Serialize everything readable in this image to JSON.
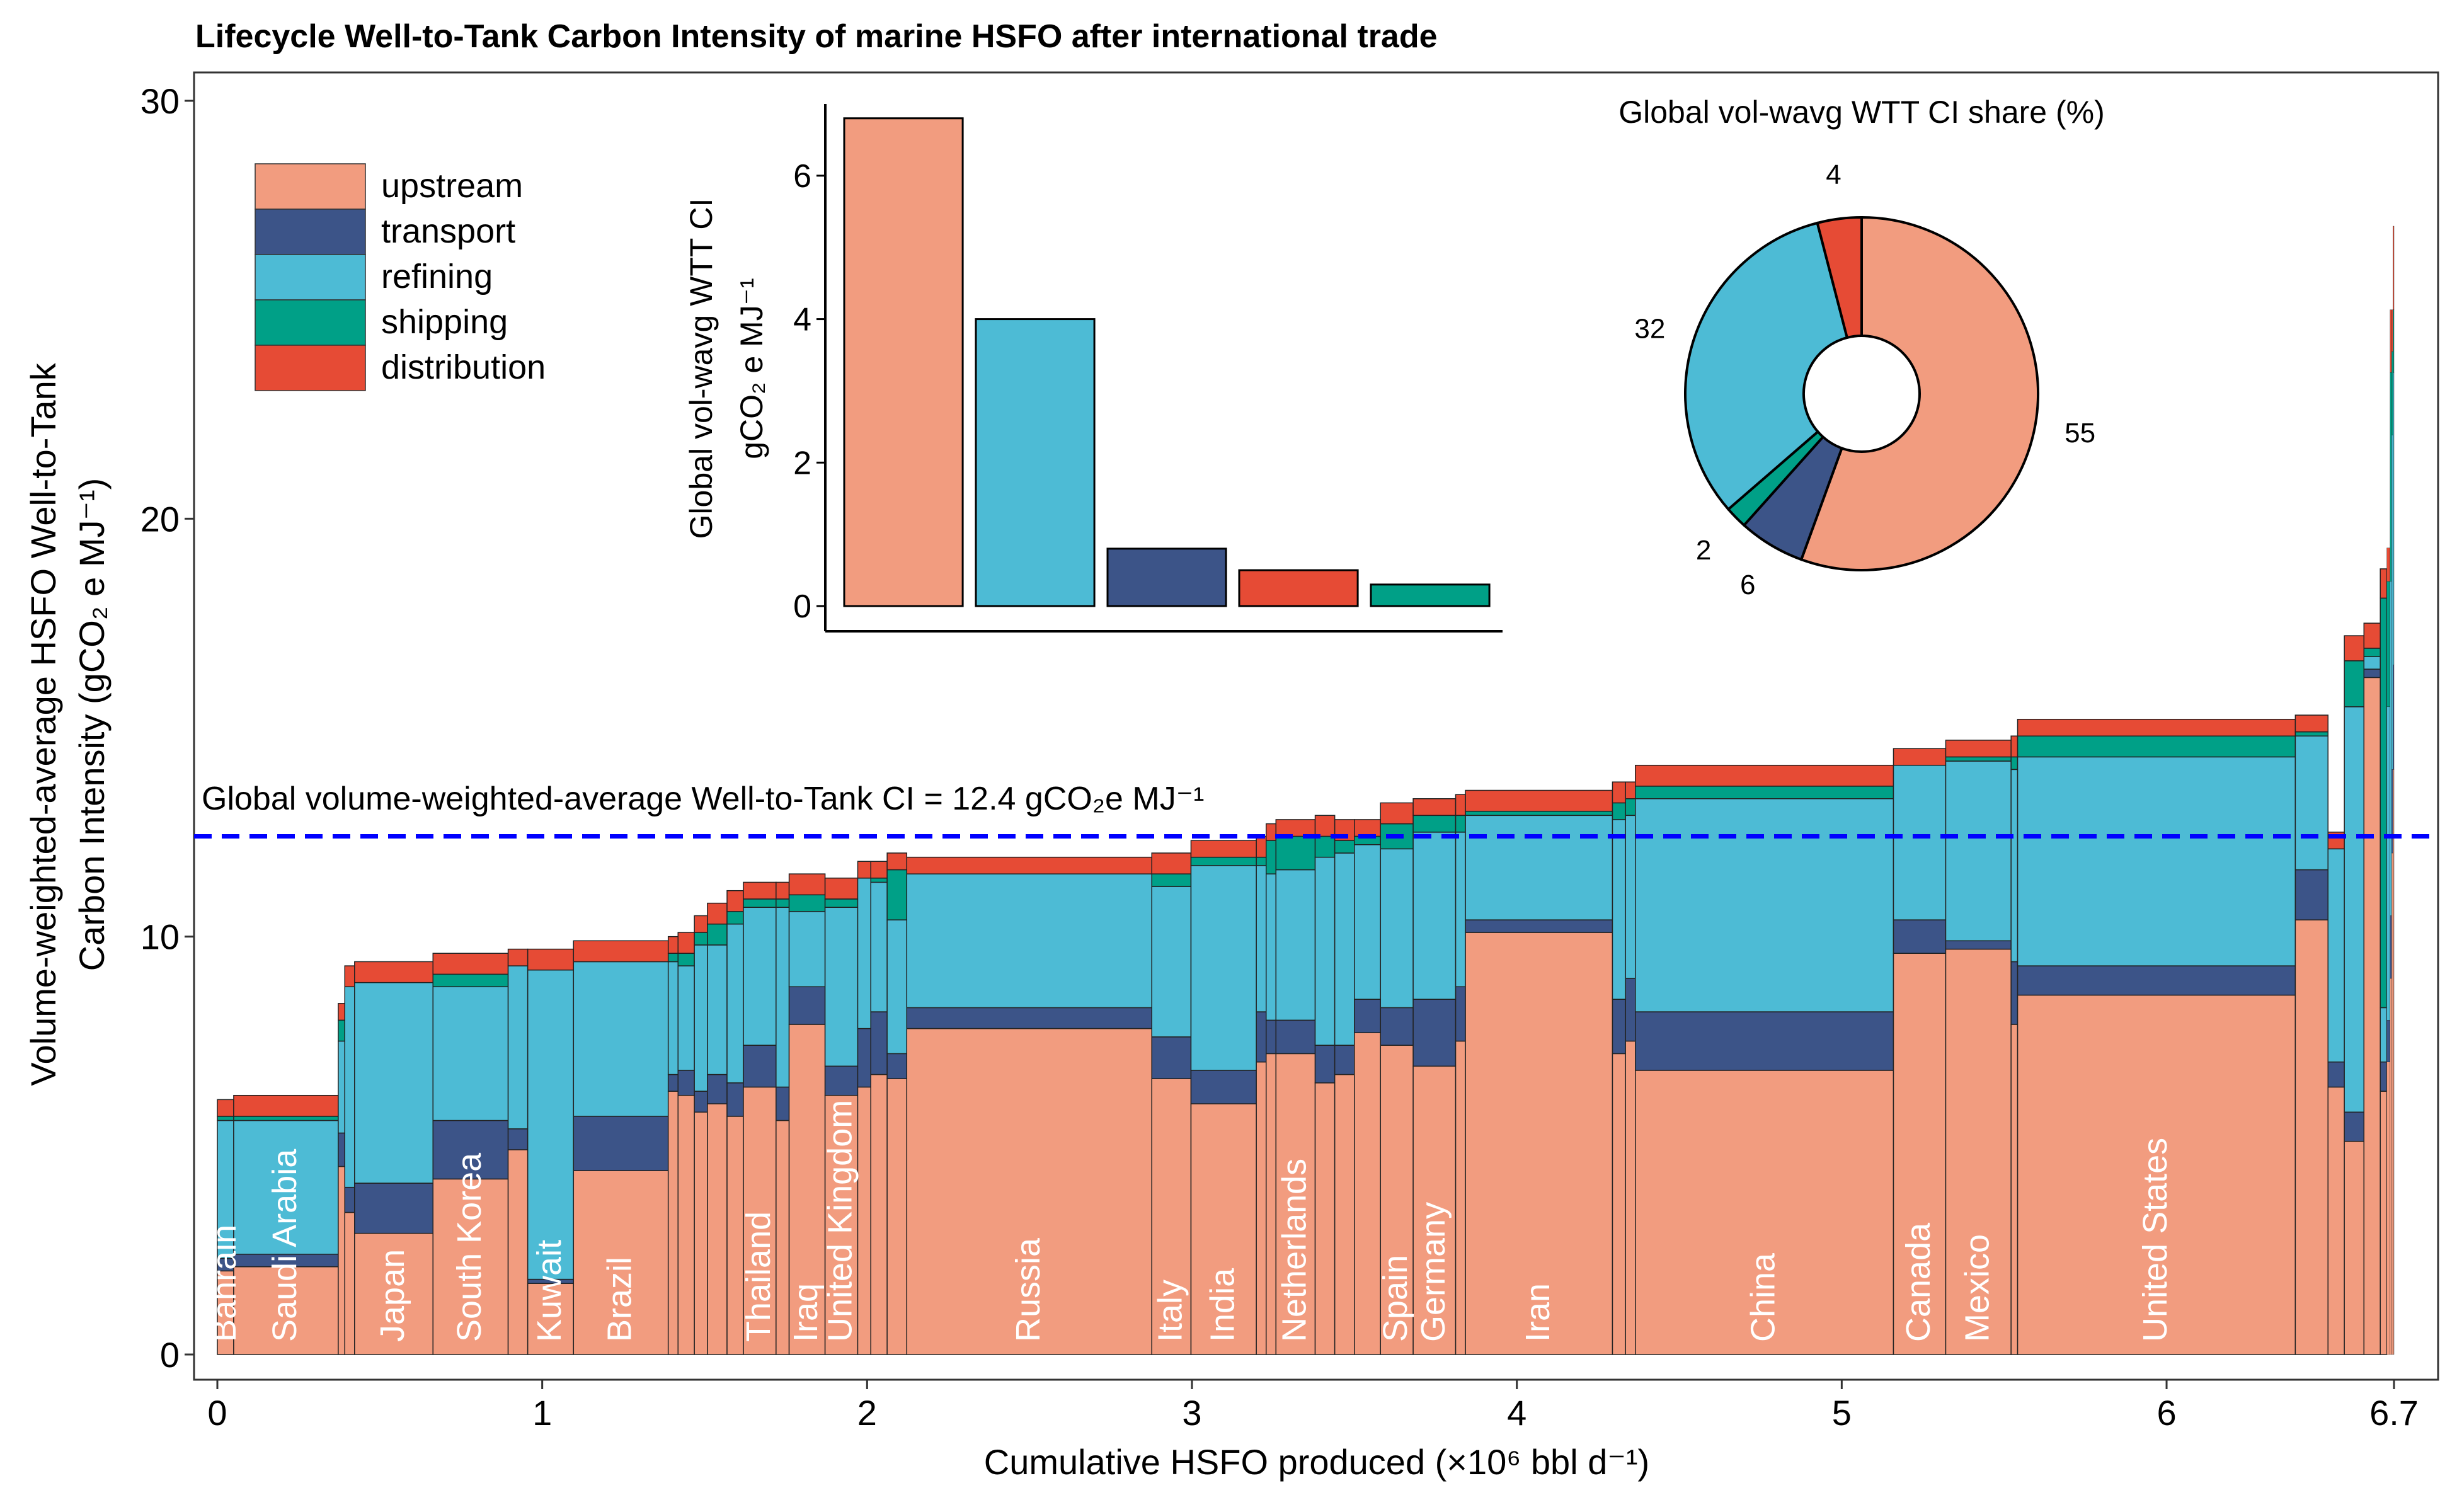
{
  "title": "Lifecycle Well-to-Tank Carbon Intensity of marine HSFO after international trade",
  "colors": {
    "upstream": "#f29c7f",
    "transport": "#3c5488",
    "refining": "#4dbbd5",
    "shipping": "#00a087",
    "distribution": "#e64b35",
    "avg_line": "#0000ff"
  },
  "chart_data": [
    {
      "type": "bar",
      "subtype": "variable-width stacked bar (marimekko)",
      "xlabel": "Cumulative HSFO produced (×10⁶ bbl d⁻¹)",
      "ylabel_line1": "Volume-weighted-average HSFO Well-to-Tank",
      "ylabel_line2": "Carbon Intensity (gCO₂ e MJ⁻¹)",
      "xlim": [
        0,
        6.7
      ],
      "ylim": [
        0,
        30
      ],
      "x_ticks": [
        0,
        1,
        2,
        3,
        4,
        5,
        6,
        6.7
      ],
      "x_tick_labels": [
        "0",
        "1",
        "2",
        "3",
        "4",
        "5",
        "6",
        "6.7"
      ],
      "y_ticks": [
        0,
        10,
        20,
        30
      ],
      "y_tick_labels": [
        "0",
        "10",
        "20",
        "30"
      ],
      "legend": [
        "upstream",
        "transport",
        "refining",
        "shipping",
        "distribution"
      ],
      "reference_line": {
        "value": 12.4,
        "label": "Global volume-weighted-average Well-to-Tank CI = 12.4  gCO₂e MJ⁻¹"
      },
      "series_order": [
        "upstream",
        "transport",
        "refining",
        "shipping",
        "distribution"
      ],
      "bars": [
        {
          "name": "Bahrain",
          "width": 0.05,
          "upstream": 2.0,
          "transport": 0.3,
          "refining": 3.3,
          "shipping": 0.1,
          "distribution": 0.4
        },
        {
          "name": "Saudi Arabia",
          "width": 0.32,
          "upstream": 2.1,
          "transport": 0.3,
          "refining": 3.2,
          "shipping": 0.1,
          "distribution": 0.5
        },
        {
          "name": "",
          "width": 0.02,
          "upstream": 4.5,
          "transport": 0.8,
          "refining": 2.2,
          "shipping": 0.5,
          "distribution": 0.4
        },
        {
          "name": "",
          "width": 0.03,
          "upstream": 3.4,
          "transport": 0.6,
          "refining": 4.8,
          "shipping": 0.0,
          "distribution": 0.5
        },
        {
          "name": "Japan",
          "width": 0.24,
          "upstream": 2.9,
          "transport": 1.2,
          "refining": 4.8,
          "shipping": 0.0,
          "distribution": 0.5
        },
        {
          "name": "South Korea",
          "width": 0.23,
          "upstream": 4.2,
          "transport": 1.4,
          "refining": 3.2,
          "shipping": 0.3,
          "distribution": 0.5
        },
        {
          "name": "",
          "width": 0.06,
          "upstream": 4.9,
          "transport": 0.5,
          "refining": 3.9,
          "shipping": 0.0,
          "distribution": 0.4
        },
        {
          "name": "Kuwait",
          "width": 0.14,
          "upstream": 1.7,
          "transport": 0.1,
          "refining": 7.4,
          "shipping": 0.0,
          "distribution": 0.5
        },
        {
          "name": "Brazil",
          "width": 0.29,
          "upstream": 4.4,
          "transport": 1.3,
          "refining": 3.7,
          "shipping": 0.0,
          "distribution": 0.5
        },
        {
          "name": "",
          "width": 0.03,
          "upstream": 6.3,
          "transport": 0.4,
          "refining": 2.7,
          "shipping": 0.2,
          "distribution": 0.4
        },
        {
          "name": "",
          "width": 0.05,
          "upstream": 6.2,
          "transport": 0.6,
          "refining": 2.5,
          "shipping": 0.3,
          "distribution": 0.5
        },
        {
          "name": "",
          "width": 0.04,
          "upstream": 5.8,
          "transport": 0.5,
          "refining": 3.5,
          "shipping": 0.3,
          "distribution": 0.4
        },
        {
          "name": "",
          "width": 0.06,
          "upstream": 6.0,
          "transport": 0.7,
          "refining": 3.1,
          "shipping": 0.5,
          "distribution": 0.5
        },
        {
          "name": "",
          "width": 0.05,
          "upstream": 5.7,
          "transport": 0.8,
          "refining": 3.8,
          "shipping": 0.3,
          "distribution": 0.5
        },
        {
          "name": "Thailand",
          "width": 0.1,
          "upstream": 6.4,
          "transport": 1.0,
          "refining": 3.3,
          "shipping": 0.2,
          "distribution": 0.4
        },
        {
          "name": "",
          "width": 0.04,
          "upstream": 5.6,
          "transport": 0.8,
          "refining": 4.3,
          "shipping": 0.2,
          "distribution": 0.4
        },
        {
          "name": "Iraq",
          "width": 0.11,
          "upstream": 7.9,
          "transport": 0.9,
          "refining": 1.8,
          "shipping": 0.4,
          "distribution": 0.5
        },
        {
          "name": "United Kingdom",
          "width": 0.1,
          "upstream": 6.2,
          "transport": 0.7,
          "refining": 3.8,
          "shipping": 0.2,
          "distribution": 0.5
        },
        {
          "name": "",
          "width": 0.04,
          "upstream": 6.4,
          "transport": 1.4,
          "refining": 3.6,
          "shipping": 0.0,
          "distribution": 0.4
        },
        {
          "name": "",
          "width": 0.05,
          "upstream": 6.7,
          "transport": 1.5,
          "refining": 3.1,
          "shipping": 0.1,
          "distribution": 0.4
        },
        {
          "name": "",
          "width": 0.06,
          "upstream": 6.6,
          "transport": 0.6,
          "refining": 3.2,
          "shipping": 1.2,
          "distribution": 0.4
        },
        {
          "name": "Russia",
          "width": 0.75,
          "upstream": 7.8,
          "transport": 0.5,
          "refining": 3.2,
          "shipping": 0.0,
          "distribution": 0.4
        },
        {
          "name": "Italy",
          "width": 0.12,
          "upstream": 6.6,
          "transport": 1.0,
          "refining": 3.6,
          "shipping": 0.3,
          "distribution": 0.5
        },
        {
          "name": "India",
          "width": 0.2,
          "upstream": 6.0,
          "transport": 0.8,
          "refining": 4.9,
          "shipping": 0.2,
          "distribution": 0.4
        },
        {
          "name": "",
          "width": 0.03,
          "upstream": 7.0,
          "transport": 1.2,
          "refining": 3.5,
          "shipping": 0.2,
          "distribution": 0.5
        },
        {
          "name": "",
          "width": 0.03,
          "upstream": 7.2,
          "transport": 0.8,
          "refining": 3.5,
          "shipping": 0.8,
          "distribution": 0.4
        },
        {
          "name": "Netherlands",
          "width": 0.12,
          "upstream": 7.2,
          "transport": 0.8,
          "refining": 3.6,
          "shipping": 0.8,
          "distribution": 0.4
        },
        {
          "name": "",
          "width": 0.06,
          "upstream": 6.5,
          "transport": 0.9,
          "refining": 4.5,
          "shipping": 0.5,
          "distribution": 0.5
        },
        {
          "name": "",
          "width": 0.06,
          "upstream": 6.7,
          "transport": 0.7,
          "refining": 4.6,
          "shipping": 0.3,
          "distribution": 0.5
        },
        {
          "name": "",
          "width": 0.08,
          "upstream": 7.7,
          "transport": 0.8,
          "refining": 3.7,
          "shipping": 0.2,
          "distribution": 0.4
        },
        {
          "name": "Spain",
          "width": 0.1,
          "upstream": 7.4,
          "transport": 0.9,
          "refining": 3.8,
          "shipping": 0.6,
          "distribution": 0.5
        },
        {
          "name": "Germany",
          "width": 0.13,
          "upstream": 6.9,
          "transport": 1.6,
          "refining": 4.0,
          "shipping": 0.4,
          "distribution": 0.4
        },
        {
          "name": "",
          "width": 0.03,
          "upstream": 7.5,
          "transport": 1.3,
          "refining": 3.7,
          "shipping": 0.4,
          "distribution": 0.5
        },
        {
          "name": "Iran",
          "width": 0.45,
          "upstream": 10.1,
          "transport": 0.3,
          "refining": 2.5,
          "shipping": 0.1,
          "distribution": 0.5
        },
        {
          "name": "",
          "width": 0.04,
          "upstream": 7.2,
          "transport": 1.3,
          "refining": 4.3,
          "shipping": 0.4,
          "distribution": 0.5
        },
        {
          "name": "",
          "width": 0.03,
          "upstream": 7.5,
          "transport": 1.5,
          "refining": 3.9,
          "shipping": 0.4,
          "distribution": 0.4
        },
        {
          "name": "China",
          "width": 0.79,
          "upstream": 6.8,
          "transport": 1.4,
          "refining": 5.1,
          "shipping": 0.3,
          "distribution": 0.5
        },
        {
          "name": "Canada",
          "width": 0.16,
          "upstream": 9.6,
          "transport": 0.8,
          "refining": 3.7,
          "shipping": 0.0,
          "distribution": 0.4
        },
        {
          "name": "Mexico",
          "width": 0.2,
          "upstream": 9.7,
          "transport": 0.2,
          "refining": 4.3,
          "shipping": 0.1,
          "distribution": 0.4
        },
        {
          "name": "",
          "width": 0.02,
          "upstream": 7.9,
          "transport": 1.5,
          "refining": 4.6,
          "shipping": 0.3,
          "distribution": 0.5
        },
        {
          "name": "United States",
          "width": 0.85,
          "upstream": 8.6,
          "transport": 0.7,
          "refining": 5.0,
          "shipping": 0.5,
          "distribution": 0.4
        },
        {
          "name": "",
          "width": 0.1,
          "upstream": 10.4,
          "transport": 1.2,
          "refining": 3.2,
          "shipping": 0.1,
          "distribution": 0.4
        },
        {
          "name": "",
          "width": 0.05,
          "upstream": 6.4,
          "transport": 0.6,
          "refining": 5.1,
          "shipping": 0.0,
          "distribution": 0.4
        },
        {
          "name": "",
          "width": 0.06,
          "upstream": 5.1,
          "transport": 0.7,
          "refining": 9.7,
          "shipping": 1.1,
          "distribution": 0.6
        },
        {
          "name": "",
          "width": 0.05,
          "upstream": 16.2,
          "transport": 0.2,
          "refining": 0.3,
          "shipping": 0.2,
          "distribution": 0.6
        },
        {
          "name": "",
          "width": 0.02,
          "upstream": 6.3,
          "transport": 0.7,
          "refining": 1.3,
          "shipping": 9.8,
          "distribution": 0.7
        },
        {
          "name": "",
          "width": 0.01,
          "upstream": 7.0,
          "transport": 1.0,
          "refining": 7.5,
          "shipping": 3.0,
          "distribution": 0.8
        },
        {
          "name": "",
          "width": 0.005,
          "upstream": 9.0,
          "transport": 1.5,
          "refining": 8.0,
          "shipping": 5.0,
          "distribution": 1.5
        },
        {
          "name": "",
          "width": 0.004,
          "upstream": 12.0,
          "transport": 2.0,
          "refining": 8.0,
          "shipping": 2.0,
          "distribution": 1.0
        },
        {
          "name": "",
          "width": 0.003,
          "upstream": 14.0,
          "transport": 2.5,
          "refining": 7.0,
          "shipping": 1.5,
          "distribution": 2.0
        }
      ]
    },
    {
      "type": "bar",
      "title": "",
      "ylabel_line1": "Global vol-wavg WTT CI",
      "ylabel_line2": "gCO₂ e MJ⁻¹",
      "ylim": [
        0,
        7
      ],
      "y_ticks": [
        0,
        2,
        4,
        6
      ],
      "categories": [
        "upstream",
        "refining",
        "transport",
        "distribution",
        "shipping"
      ],
      "values": [
        6.8,
        4.0,
        0.8,
        0.5,
        0.3
      ]
    },
    {
      "type": "pie",
      "title": "Global vol-wavg WTT CI share (%)",
      "labels": [
        "upstream",
        "transport",
        "shipping",
        "refining",
        "distribution"
      ],
      "values": [
        55,
        6,
        2,
        32,
        4
      ],
      "value_labels": [
        "55",
        "6",
        "2",
        "32",
        "4"
      ]
    }
  ]
}
